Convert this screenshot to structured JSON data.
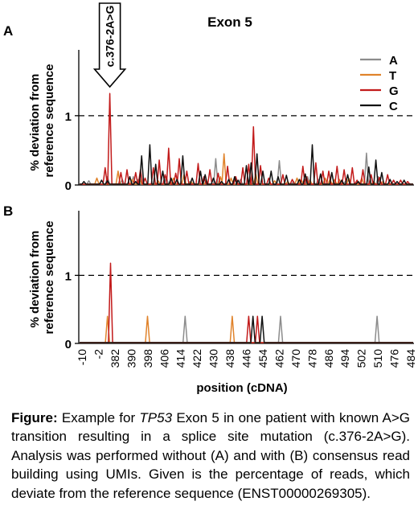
{
  "chart_data": [
    {
      "type": "line",
      "panel_label": "A",
      "title": "Exon 5",
      "ylabel": [
        "% deviation from",
        "reference sequence"
      ],
      "xlabel": "",
      "yticks": [
        0,
        1
      ],
      "ylim": [
        0,
        1.95
      ],
      "reference_line": 1,
      "grid": false,
      "legend_position": "top-right",
      "x": [
        "-10",
        "-2",
        "382",
        "390",
        "398",
        "406",
        "414",
        "422",
        "430",
        "438",
        "446",
        "454",
        "462",
        "470",
        "478",
        "486",
        "494",
        "502",
        "510",
        "476",
        "484"
      ],
      "annotation": {
        "label": "c.376-2A>G",
        "position": "-2"
      },
      "series": [
        {
          "name": "A",
          "color": "#8c8c8c",
          "peaks": [
            [
              3.6,
              0.06
            ],
            [
              11.5,
              0.12
            ],
            [
              17.8,
              0.08
            ],
            [
              22.5,
              0.12
            ],
            [
              24.5,
              0.08
            ],
            [
              36.5,
              0.12
            ],
            [
              46.5,
              0.05
            ],
            [
              57.5,
              0.38
            ],
            [
              68,
              0.08
            ],
            [
              72,
              0.1
            ],
            [
              84.5,
              0.35
            ],
            [
              90.5,
              0.05
            ],
            [
              96.5,
              0.12
            ],
            [
              101,
              0.08
            ],
            [
              112.5,
              0.05
            ],
            [
              121.5,
              0.46
            ],
            [
              126.5,
              0.12
            ]
          ]
        },
        {
          "name": "T",
          "color": "#e0832b",
          "peaks": [
            [
              7,
              0.1
            ],
            [
              16,
              0.2
            ],
            [
              22,
              0.08
            ],
            [
              25.2,
              0.1
            ],
            [
              33,
              0.06
            ],
            [
              39.5,
              0.1
            ],
            [
              44,
              0.15
            ],
            [
              47,
              0.05
            ],
            [
              53.5,
              0.06
            ],
            [
              59.5,
              0.12
            ],
            [
              61,
              0.45
            ],
            [
              64,
              0.1
            ],
            [
              74.5,
              0.16
            ],
            [
              82.5,
              0.06
            ],
            [
              88,
              0.05
            ],
            [
              92,
              0.1
            ],
            [
              93.8,
              0.08
            ],
            [
              97.5,
              0.07
            ],
            [
              104,
              0.1
            ],
            [
              106,
              0.08
            ],
            [
              108,
              0.08
            ],
            [
              110,
              0.08
            ],
            [
              114,
              0.1
            ],
            [
              119.5,
              0.1
            ],
            [
              124.5,
              0.05
            ],
            [
              128.5,
              0.05
            ]
          ]
        },
        {
          "name": "G",
          "color": "#c21a1a",
          "peaks": [
            [
              10.5,
              0.25
            ],
            [
              12.5,
              1.32
            ],
            [
              17.2,
              0.18
            ],
            [
              19.8,
              0.22
            ],
            [
              23.5,
              0.18
            ],
            [
              25.5,
              0.22
            ],
            [
              27.5,
              0.1
            ],
            [
              31,
              0.25
            ],
            [
              33.5,
              0.36
            ],
            [
              36,
              0.15
            ],
            [
              37.5,
              0.53
            ],
            [
              40.5,
              0.17
            ],
            [
              42,
              0.38
            ],
            [
              45.2,
              0.2
            ],
            [
              50,
              0.31
            ],
            [
              52.5,
              0.12
            ],
            [
              55,
              0.22
            ],
            [
              58.5,
              0.17
            ],
            [
              62.5,
              0.27
            ],
            [
              66,
              0.12
            ],
            [
              69,
              0.25
            ],
            [
              71.5,
              0.3
            ],
            [
              73.5,
              0.84
            ],
            [
              76.5,
              0.28
            ],
            [
              80,
              0.1
            ],
            [
              86,
              0.15
            ],
            [
              90,
              0.08
            ],
            [
              94.5,
              0.27
            ],
            [
              96,
              0.12
            ],
            [
              100,
              0.32
            ],
            [
              103,
              0.2
            ],
            [
              105.5,
              0.2
            ],
            [
              109,
              0.27
            ],
            [
              112,
              0.22
            ],
            [
              115.5,
              0.25
            ],
            [
              117.5,
              0.07
            ],
            [
              120,
              0.22
            ],
            [
              123.5,
              0.15
            ],
            [
              127,
              0.11
            ],
            [
              130.5,
              0.15
            ],
            [
              133,
              0.07
            ],
            [
              136,
              0.07
            ],
            [
              139,
              0.05
            ]
          ]
        },
        {
          "name": "C",
          "color": "#111111",
          "peaks": [
            [
              1.5,
              0.05
            ],
            [
              9,
              0.07
            ],
            [
              11.5,
              0.06
            ],
            [
              21,
              0.12
            ],
            [
              23.5,
              0.05
            ],
            [
              26,
              0.42
            ],
            [
              29.5,
              0.58
            ],
            [
              32,
              0.3
            ],
            [
              35,
              0.2
            ],
            [
              38.5,
              0.1
            ],
            [
              41,
              0.08
            ],
            [
              43.5,
              0.42
            ],
            [
              47.5,
              0.1
            ],
            [
              51,
              0.2
            ],
            [
              53,
              0.15
            ],
            [
              56.5,
              0.1
            ],
            [
              60,
              0.05
            ],
            [
              63,
              0.08
            ],
            [
              65.5,
              0.12
            ],
            [
              67,
              0.07
            ],
            [
              70.5,
              0.28
            ],
            [
              72.5,
              0.32
            ],
            [
              75,
              0.45
            ],
            [
              77.5,
              0.2
            ],
            [
              81,
              0.2
            ],
            [
              84,
              0.12
            ],
            [
              87.5,
              0.14
            ],
            [
              93,
              0.08
            ],
            [
              95.5,
              0.16
            ],
            [
              98.5,
              0.58
            ],
            [
              102,
              0.16
            ],
            [
              106.8,
              0.18
            ],
            [
              111,
              0.07
            ],
            [
              113.5,
              0.15
            ],
            [
              118,
              0.05
            ],
            [
              122.5,
              0.26
            ],
            [
              125.5,
              0.36
            ],
            [
              128,
              0.18
            ],
            [
              131.5,
              0.08
            ],
            [
              134.5,
              0.05
            ],
            [
              137.5,
              0.07
            ]
          ]
        }
      ]
    },
    {
      "type": "line",
      "panel_label": "B",
      "title": "",
      "ylabel": [
        "% deviation from",
        "reference sequence"
      ],
      "xlabel": "position (cDNA)",
      "yticks": [
        0,
        1
      ],
      "ylim": [
        0,
        1.95
      ],
      "reference_line": 1,
      "grid": false,
      "x": [
        "-10",
        "-2",
        "382",
        "390",
        "398",
        "406",
        "414",
        "422",
        "430",
        "438",
        "446",
        "454",
        "462",
        "470",
        "478",
        "486",
        "494",
        "502",
        "510",
        "476",
        "484"
      ],
      "series": [
        {
          "name": "A",
          "color": "#8c8c8c",
          "peaks": [
            [
              44.5,
              0.4
            ],
            [
              85,
              0.4
            ],
            [
              126,
              0.4
            ]
          ]
        },
        {
          "name": "T",
          "color": "#e0832b",
          "peaks": [
            [
              11.5,
              0.4
            ],
            [
              28.5,
              0.4
            ],
            [
              64.5,
              0.4
            ]
          ]
        },
        {
          "name": "G",
          "color": "#c21a1a",
          "peaks": [
            [
              12.8,
              1.18
            ],
            [
              71.5,
              0.4
            ],
            [
              75.2,
              0.4
            ]
          ]
        },
        {
          "name": "C",
          "color": "#111111",
          "peaks": [
            [
              73.3,
              0.4
            ],
            [
              77.2,
              0.4
            ]
          ]
        }
      ]
    }
  ],
  "caption": {
    "lead": "Figure:",
    "pre": " Example for ",
    "gene": "TP53",
    "post": " Exon 5 in one patient with known A>G transition resulting in a splice site mutation (c.376-2A>G). Analysis was performed without (A) and with (B) consensus read building using UMIs. Given is the percentage of reads, which deviate from the reference sequence (ENST00000269305)."
  }
}
